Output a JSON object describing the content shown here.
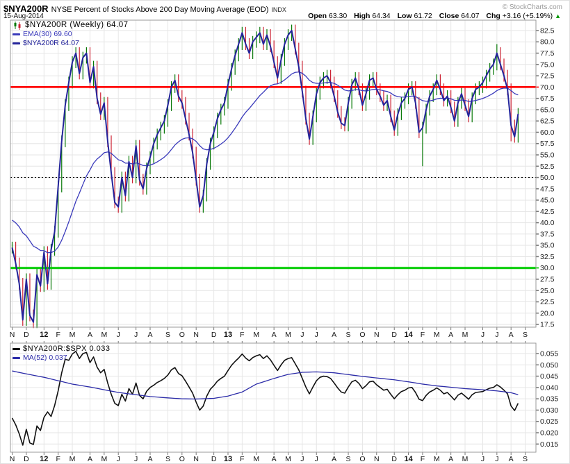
{
  "header": {
    "symbol": "$NYA200R",
    "title": "NYSE Percent of Stocks Above 200 Day Moving Average (EOD)",
    "exchange": "INDX",
    "credit": "© StockCharts.com",
    "date": "15-Aug-2014",
    "quote": {
      "open_label": "Open",
      "open": "63.30",
      "high_label": "High",
      "high": "64.34",
      "low_label": "Low",
      "low": "61.72",
      "close_label": "Close",
      "close": "64.07",
      "chg_label": "Chg",
      "chg": "+3.16 (+5.19%)",
      "arrow": "▲"
    }
  },
  "colors": {
    "up_bar": "#067806",
    "down_bar": "#cc2233",
    "close_line": "#24249b",
    "ema_line": "#3a3abb",
    "ratio_line": "#111111",
    "ma_line": "#2b2ba8",
    "grid": "#e6e6e6",
    "border": "#999999",
    "tick": "#777777",
    "axis_text": "#222222",
    "red_line": "#ff0000",
    "green_line": "#00cc00",
    "dotted_line": "#000000"
  },
  "x_axis": {
    "labels": [
      "N",
      "D",
      "12",
      "F",
      "M",
      "A",
      "M",
      "J",
      "J",
      "A",
      "S",
      "O",
      "N",
      "D",
      "13",
      "F",
      "M",
      "A",
      "M",
      "J",
      "J",
      "A",
      "S",
      "O",
      "N",
      "D",
      "14",
      "F",
      "M",
      "A",
      "M",
      "J",
      "J",
      "A",
      "S"
    ],
    "indices": [
      0,
      4,
      9,
      13,
      17,
      22,
      26,
      30,
      35,
      39,
      44,
      48,
      52,
      57,
      61,
      65,
      69,
      74,
      78,
      82,
      86,
      91,
      95,
      99,
      103,
      108,
      112,
      116,
      120,
      124,
      128,
      133,
      137,
      141,
      145
    ],
    "bold_labels": [
      "12",
      "13",
      "14"
    ]
  },
  "chart_data": [
    {
      "type": "bar",
      "subtype": "weekly-ohlc-with-close-line",
      "title": "$NYA200R (Weekly)",
      "last_value": 64.07,
      "ylim": [
        16.9,
        84.8
      ],
      "y_ticks": [
        82.5,
        80.0,
        77.5,
        75.0,
        72.5,
        70.0,
        67.5,
        65.0,
        62.5,
        60.0,
        57.5,
        55.0,
        52.5,
        50.0,
        47.5,
        45.0,
        42.5,
        40.0,
        37.5,
        35.0,
        32.5,
        30.0,
        27.5,
        25.0,
        22.5,
        20.0,
        17.5
      ],
      "legend": [
        {
          "icon": "candles-icon",
          "label": "$NYA200R (Weekly) 64.07",
          "color": "#000000"
        },
        {
          "icon": "dash-icon",
          "label": "EMA(30) 69.60",
          "color": "#3a3abb"
        },
        {
          "icon": "dash-icon",
          "label": "$NYA200R 64.07",
          "color": "#24249b"
        }
      ],
      "hlines": [
        {
          "value": 70.0,
          "color": "#ff0000",
          "style": "solid",
          "width": 2.6
        },
        {
          "value": 50.0,
          "color": "#000000",
          "style": "dotted",
          "width": 1
        },
        {
          "value": 30.0,
          "color": "#00cc00",
          "style": "solid",
          "width": 3
        }
      ],
      "ema_period": 30,
      "ema_seed": 41.0,
      "wick": 1.3,
      "wick_overrides": {
        "116": {
          "low": 52.5
        },
        "137": {
          "high": 79.5
        },
        "141": {
          "low": 58.0
        }
      },
      "closes": [
        34.5,
        31.0,
        26.5,
        18.5,
        27.5,
        19.5,
        18.0,
        28.5,
        26.0,
        33.5,
        26.5,
        34.0,
        38.0,
        48.0,
        58.0,
        66.0,
        71.0,
        75.5,
        77.5,
        73.0,
        76.5,
        77.5,
        71.0,
        74.5,
        67.5,
        64.0,
        66.5,
        58.0,
        51.0,
        44.5,
        43.5,
        50.0,
        46.0,
        53.5,
        50.0,
        57.0,
        49.5,
        47.5,
        52.0,
        54.5,
        57.5,
        59.5,
        61.0,
        62.5,
        66.0,
        70.0,
        71.5,
        68.0,
        66.5,
        63.0,
        59.5,
        55.5,
        49.5,
        43.5,
        46.0,
        53.0,
        57.5,
        60.0,
        63.0,
        65.0,
        66.5,
        70.5,
        74.0,
        77.0,
        79.5,
        82.0,
        79.5,
        77.5,
        80.0,
        81.0,
        82.0,
        79.5,
        81.5,
        79.0,
        75.5,
        72.0,
        76.0,
        79.5,
        81.5,
        82.5,
        78.5,
        74.5,
        69.0,
        63.0,
        58.5,
        63.5,
        68.5,
        71.0,
        72.0,
        72.5,
        71.0,
        68.0,
        64.5,
        62.0,
        61.5,
        66.5,
        70.5,
        72.0,
        69.5,
        66.0,
        68.5,
        71.5,
        72.0,
        69.5,
        68.0,
        66.0,
        67.0,
        63.5,
        60.5,
        64.0,
        66.5,
        67.5,
        69.5,
        70.0,
        66.5,
        60.0,
        61.0,
        65.0,
        68.0,
        69.5,
        71.5,
        69.5,
        67.0,
        68.0,
        65.5,
        62.5,
        66.5,
        68.5,
        66.0,
        63.5,
        67.5,
        69.5,
        70.0,
        71.0,
        72.5,
        74.0,
        75.0,
        77.5,
        75.0,
        72.5,
        69.5,
        61.5,
        59.0,
        64.07
      ]
    },
    {
      "type": "line",
      "title": "$NYA200R:$SPX",
      "last_value": 0.033,
      "ylim": [
        0.0114,
        0.0596
      ],
      "y_ticks": [
        0.055,
        0.05,
        0.045,
        0.04,
        0.035,
        0.03,
        0.025,
        0.02,
        0.015
      ],
      "legend": [
        {
          "icon": "dash-icon",
          "label": "$NYA200R:$SPX 0.033",
          "color": "#111111"
        },
        {
          "icon": "dash-icon",
          "label": "MA(52) 0.037",
          "color": "#2b2ba8"
        }
      ],
      "values": [
        0.0265,
        0.0235,
        0.0195,
        0.0145,
        0.0215,
        0.0155,
        0.0148,
        0.023,
        0.021,
        0.0268,
        0.0292,
        0.0272,
        0.032,
        0.0385,
        0.0465,
        0.0525,
        0.052,
        0.0548,
        0.056,
        0.0528,
        0.055,
        0.0555,
        0.051,
        0.0535,
        0.049,
        0.0465,
        0.048,
        0.042,
        0.037,
        0.033,
        0.032,
        0.037,
        0.034,
        0.0395,
        0.037,
        0.042,
        0.0365,
        0.035,
        0.0383,
        0.04,
        0.041,
        0.0422,
        0.043,
        0.044,
        0.0455,
        0.0478,
        0.0488,
        0.0462,
        0.0452,
        0.0428,
        0.0402,
        0.0375,
        0.0335,
        0.03,
        0.0318,
        0.0362,
        0.0392,
        0.0408,
        0.0428,
        0.044,
        0.045,
        0.0475,
        0.0498,
        0.0515,
        0.053,
        0.0548,
        0.053,
        0.0518,
        0.0532,
        0.054,
        0.0545,
        0.0528,
        0.054,
        0.0522,
        0.0498,
        0.0475,
        0.05,
        0.052,
        0.0528,
        0.0532,
        0.0505,
        0.0478,
        0.044,
        0.0402,
        0.0372,
        0.0402,
        0.043,
        0.0445,
        0.045,
        0.0448,
        0.044,
        0.042,
        0.0398,
        0.038,
        0.0375,
        0.0402,
        0.0425,
        0.0432,
        0.0418,
        0.0395,
        0.0408,
        0.0425,
        0.0428,
        0.0412,
        0.04,
        0.0388,
        0.0392,
        0.037,
        0.035,
        0.0368,
        0.0382,
        0.0388,
        0.0398,
        0.04,
        0.0378,
        0.0348,
        0.0342,
        0.0365,
        0.038,
        0.0388,
        0.0398,
        0.0388,
        0.0372,
        0.0378,
        0.0362,
        0.0345,
        0.0366,
        0.0375,
        0.0362,
        0.0348,
        0.0368,
        0.0378,
        0.038,
        0.0382,
        0.039,
        0.0397,
        0.04,
        0.0412,
        0.0402,
        0.0388,
        0.0372,
        0.0318,
        0.0298,
        0.033
      ],
      "ma52": {
        "indices": [
          0,
          4,
          9,
          13,
          17,
          22,
          26,
          30,
          35,
          39,
          44,
          48,
          52,
          57,
          61,
          65,
          69,
          74,
          78,
          82,
          86,
          91,
          95,
          99,
          103,
          108,
          112,
          116,
          120,
          124,
          128,
          133,
          137,
          141,
          143
        ],
        "values": [
          0.0473,
          0.046,
          0.0445,
          0.043,
          0.0415,
          0.0402,
          0.039,
          0.0378,
          0.0368,
          0.036,
          0.0354,
          0.035,
          0.0349,
          0.0352,
          0.0362,
          0.038,
          0.0415,
          0.044,
          0.0458,
          0.0467,
          0.0469,
          0.0465,
          0.0457,
          0.0449,
          0.0442,
          0.0434,
          0.0425,
          0.0415,
          0.0407,
          0.0401,
          0.0395,
          0.039,
          0.0385,
          0.0377,
          0.0368
        ]
      }
    }
  ]
}
